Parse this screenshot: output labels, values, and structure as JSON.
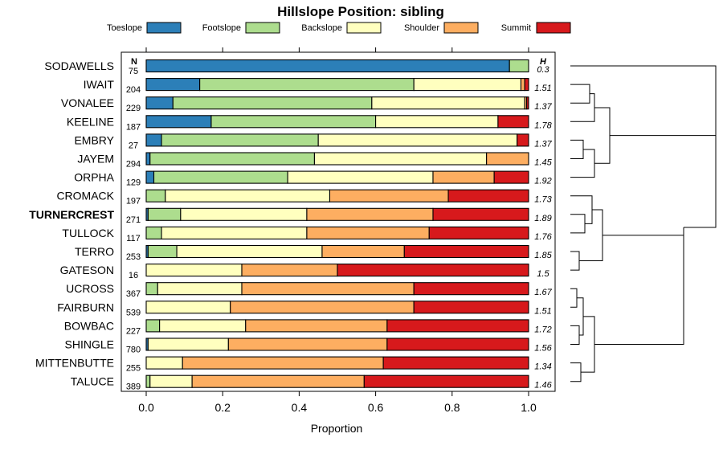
{
  "chart_data": {
    "type": "bar",
    "orientation": "horizontal",
    "stacked": true,
    "title": "Hillslope Position: sibling",
    "xlabel": "Proportion",
    "xlim": [
      0,
      1
    ],
    "xticks": [
      "0.0",
      "0.2",
      "0.4",
      "0.6",
      "0.8",
      "1.0"
    ],
    "n_header": "N",
    "h_header": "H",
    "legend_position": "top",
    "series": [
      {
        "name": "Toeslope",
        "color": "#2c7fb8"
      },
      {
        "name": "Footslope",
        "color": "#addd8e"
      },
      {
        "name": "Backslope",
        "color": "#ffffbf"
      },
      {
        "name": "Shoulder",
        "color": "#fdae61"
      },
      {
        "name": "Summit",
        "color": "#d7191c"
      }
    ],
    "rows": [
      {
        "name": "SODAWELLS",
        "bold": false,
        "n": "75",
        "h": "0.3",
        "values": [
          0.95,
          0.05,
          0.0,
          0.0,
          0.0
        ]
      },
      {
        "name": "IWAIT",
        "bold": false,
        "n": "204",
        "h": "1.51",
        "values": [
          0.14,
          0.56,
          0.28,
          0.01,
          0.01
        ]
      },
      {
        "name": "VONALEE",
        "bold": false,
        "n": "229",
        "h": "1.37",
        "values": [
          0.07,
          0.52,
          0.4,
          0.005,
          0.005
        ]
      },
      {
        "name": "KEELINE",
        "bold": false,
        "n": "187",
        "h": "1.78",
        "values": [
          0.17,
          0.43,
          0.32,
          0.0,
          0.08
        ]
      },
      {
        "name": "EMBRY",
        "bold": false,
        "n": "27",
        "h": "1.37",
        "values": [
          0.04,
          0.41,
          0.52,
          0.0,
          0.03
        ]
      },
      {
        "name": "JAYEM",
        "bold": false,
        "n": "294",
        "h": "1.45",
        "values": [
          0.01,
          0.43,
          0.45,
          0.11,
          0.0
        ]
      },
      {
        "name": "ORPHA",
        "bold": false,
        "n": "129",
        "h": "1.92",
        "values": [
          0.02,
          0.35,
          0.38,
          0.16,
          0.09
        ]
      },
      {
        "name": "CROMACK",
        "bold": false,
        "n": "197",
        "h": "1.73",
        "values": [
          0.0,
          0.05,
          0.43,
          0.31,
          0.21
        ]
      },
      {
        "name": "TURNERCREST",
        "bold": true,
        "n": "271",
        "h": "1.89",
        "values": [
          0.005,
          0.085,
          0.33,
          0.33,
          0.25
        ]
      },
      {
        "name": "TULLOCK",
        "bold": false,
        "n": "117",
        "h": "1.76",
        "values": [
          0.0,
          0.04,
          0.38,
          0.32,
          0.26
        ]
      },
      {
        "name": "TERRO",
        "bold": false,
        "n": "253",
        "h": "1.85",
        "values": [
          0.005,
          0.075,
          0.38,
          0.215,
          0.325
        ]
      },
      {
        "name": "GATESON",
        "bold": false,
        "n": "16",
        "h": "1.5",
        "values": [
          0.0,
          0.0,
          0.25,
          0.25,
          0.5
        ]
      },
      {
        "name": "UCROSS",
        "bold": false,
        "n": "367",
        "h": "1.67",
        "values": [
          0.0,
          0.03,
          0.22,
          0.45,
          0.3
        ]
      },
      {
        "name": "FAIRBURN",
        "bold": false,
        "n": "539",
        "h": "1.51",
        "values": [
          0.0,
          0.0,
          0.22,
          0.48,
          0.3
        ]
      },
      {
        "name": "BOWBAC",
        "bold": false,
        "n": "227",
        "h": "1.72",
        "values": [
          0.0,
          0.035,
          0.225,
          0.37,
          0.37
        ]
      },
      {
        "name": "SHINGLE",
        "bold": false,
        "n": "780",
        "h": "1.56",
        "values": [
          0.005,
          0.0,
          0.21,
          0.415,
          0.37
        ]
      },
      {
        "name": "MITTENBUTTE",
        "bold": false,
        "n": "255",
        "h": "1.34",
        "values": [
          0.0,
          0.0,
          0.095,
          0.525,
          0.38
        ]
      },
      {
        "name": "TALUCE",
        "bold": false,
        "n": "389",
        "h": "1.46",
        "values": [
          0.0,
          0.01,
          0.11,
          0.45,
          0.43
        ]
      }
    ]
  }
}
